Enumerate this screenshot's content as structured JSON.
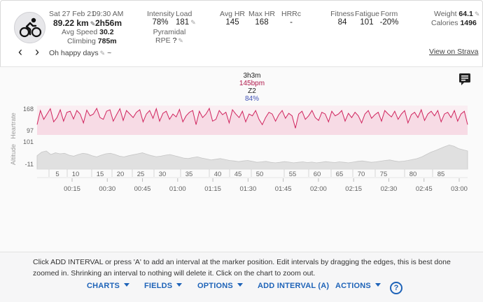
{
  "activity": {
    "date": "Sat 27 Feb 21",
    "time": "09:30 AM",
    "distance": "89.22 km",
    "duration": "2h56m",
    "avg_speed_label": "Avg Speed",
    "avg_speed": "30.2",
    "climbing_label": "Climbing",
    "climbing": "785m",
    "title": "Oh happy days",
    "title_suffix": "~",
    "view_on_strava": "View on Strava"
  },
  "stats": {
    "intensity_label": "Intensity",
    "intensity": "78%",
    "load_label": "Load",
    "load": "181",
    "pyramidal": "Pyramidal",
    "rpe_label": "RPE",
    "rpe": "?",
    "avg_hr_label": "Avg HR",
    "avg_hr": "145",
    "max_hr_label": "Max HR",
    "max_hr": "168",
    "hrrc_label": "HRRc",
    "hrrc": "-",
    "fitness_label": "Fitness",
    "fitness": "84",
    "fatigue_label": "Fatigue",
    "fatigue": "101",
    "form_label": "Form",
    "form": "-20%",
    "weight_label": "Weight",
    "weight": "64.1",
    "calories_label": "Calories",
    "calories": "1496"
  },
  "chart_data": {
    "type": "line",
    "tooltip": {
      "time": "3h3m",
      "hr": "145bpm",
      "zone": "Z2",
      "pct": "84%"
    },
    "series": [
      {
        "name": "Heartrate",
        "ylim": [
          97,
          168
        ],
        "color": "#d0245e",
        "values": [
          120,
          160,
          135,
          150,
          165,
          128,
          140,
          162,
          130,
          155,
          158,
          136,
          160,
          150,
          125,
          161,
          145,
          150,
          166,
          140,
          135,
          158,
          162,
          130,
          148,
          165,
          132,
          160,
          150,
          140,
          155,
          162,
          128,
          150,
          160,
          138,
          165,
          130,
          152,
          158,
          135,
          150,
          142,
          163,
          128,
          145,
          155,
          160,
          120,
          158,
          140,
          150,
          166,
          130,
          135,
          160,
          148,
          155,
          125,
          162,
          150,
          140,
          158,
          128,
          150,
          145,
          160,
          135,
          120,
          140,
          155,
          150,
          130,
          148,
          160,
          138,
          152,
          145,
          110,
          150,
          158,
          135,
          145,
          160,
          140,
          132,
          155,
          150,
          128,
          158,
          145,
          150,
          160,
          130,
          152,
          140,
          155,
          145,
          125,
          150,
          160,
          138,
          148,
          155,
          130,
          160,
          150,
          142,
          158,
          135,
          150,
          160,
          125,
          148,
          155,
          140,
          162,
          132,
          150,
          158,
          145,
          160,
          128,
          150,
          155,
          140,
          160,
          130,
          150,
          158,
          120
        ]
      },
      {
        "name": "Altitude",
        "ylim": [
          -11,
          101
        ],
        "color": "#9e9e9e",
        "values": [
          40,
          55,
          60,
          45,
          52,
          48,
          50,
          42,
          38,
          45,
          50,
          47,
          40,
          35,
          42,
          48,
          50,
          45,
          38,
          35,
          40,
          44,
          48,
          52,
          46,
          40,
          36,
          38,
          42,
          45,
          40,
          35,
          30,
          28,
          32,
          35,
          30,
          26,
          22,
          25,
          28,
          24,
          20,
          18,
          15,
          18,
          20,
          16,
          12,
          14,
          16,
          12,
          10,
          12,
          15,
          13,
          10,
          12,
          14,
          11,
          13,
          10,
          12,
          15,
          13,
          11,
          14,
          12,
          10,
          13,
          16,
          18,
          15,
          12,
          14,
          17,
          20,
          22,
          18,
          15,
          17,
          20,
          24,
          28,
          35,
          45,
          55,
          62,
          70,
          78,
          85,
          80,
          70,
          65,
          60
        ]
      }
    ],
    "y_labels": {
      "heartrate": "Heartrate",
      "altitude": "Altitude",
      "hr_top": "168",
      "hr_bottom": "97",
      "alt_top": "101",
      "alt_bottom": "-11"
    },
    "km_ticks": [
      "5",
      "10",
      "15",
      "20",
      "25",
      "30",
      "35",
      "40",
      "45",
      "50",
      "55",
      "60",
      "65",
      "70",
      "75",
      "80",
      "85"
    ],
    "time_ticks": [
      "00:15",
      "00:30",
      "00:45",
      "01:00",
      "01:15",
      "01:30",
      "01:45",
      "02:00",
      "02:15",
      "02:30",
      "02:45",
      "03:00"
    ]
  },
  "help_text": "Click ADD INTERVAL or press 'A' to add an interval at the marker position. Edit intervals by dragging the edges, this is best done zoomed in. Shrinking an interval to nothing will delete it. Click on the chart to zoom out.",
  "toolbar": {
    "charts": "CHARTS",
    "fields": "FIELDS",
    "options": "OPTIONS",
    "add_interval": "ADD INTERVAL (A)",
    "actions": "ACTIONS",
    "help": "?"
  },
  "colors": {
    "accent": "#1e63b8",
    "heartrate": "#d0245e",
    "hr_fill": "#f9e1ea",
    "altitude_fill": "#e3e3e3",
    "zone_pct": "#3f51b5"
  }
}
